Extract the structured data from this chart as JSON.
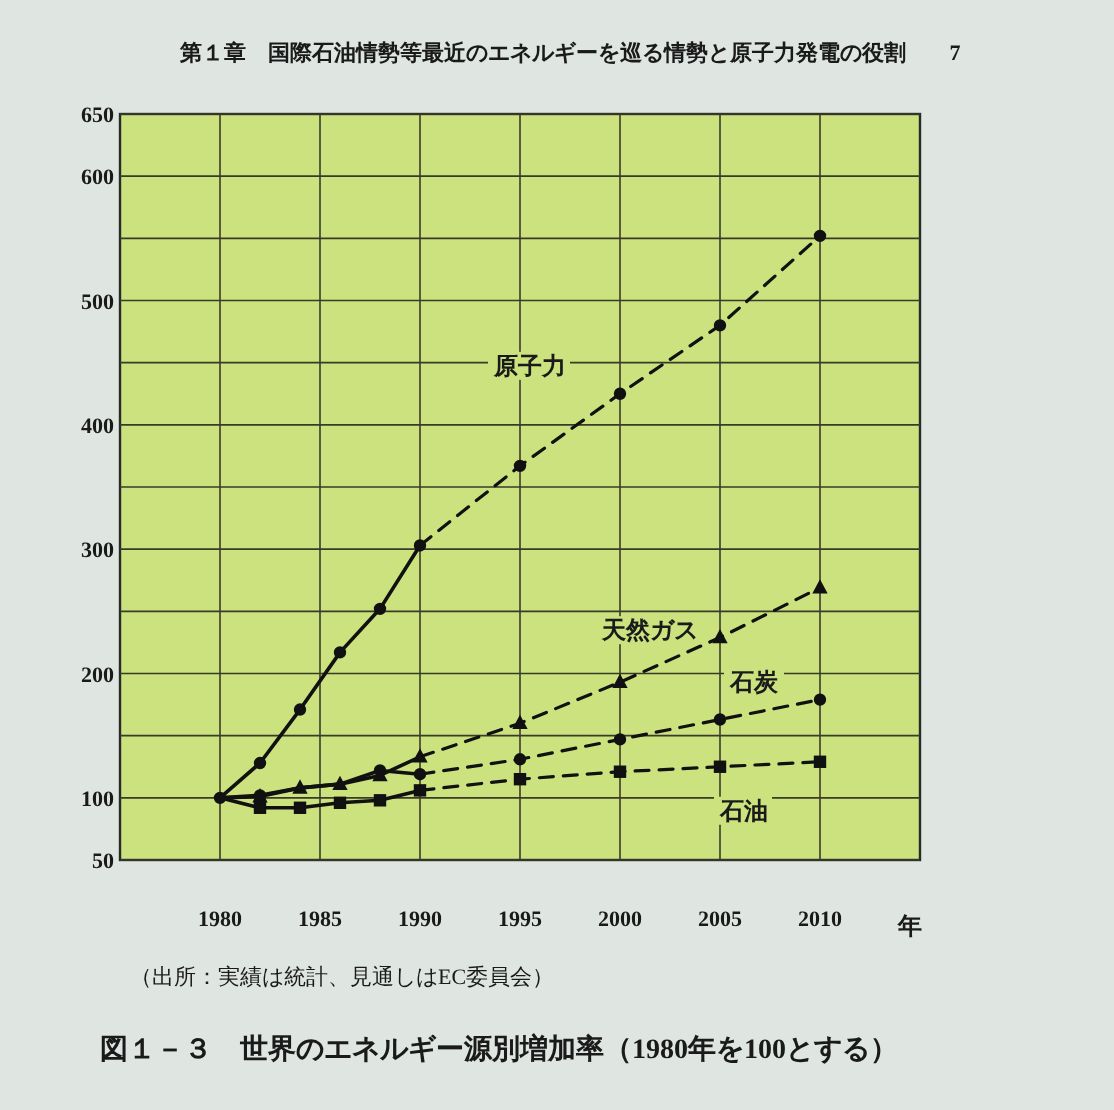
{
  "chart_data": {
    "type": "line",
    "title": "図１－３　世界のエネルギー源別増加率（1980年を100とする）",
    "xlabel": "年",
    "annotations": [
      "第１章　国際石油情勢等最近のエネルギーを巡る情勢と原子力発電の役割　　7",
      "（出所：実績は統計、見通しはEC委員会）"
    ],
    "xlim": [
      1975,
      2015
    ],
    "xticks": [
      1980,
      1985,
      1990,
      1995,
      2000,
      2005,
      2010
    ],
    "ylim": [
      50,
      650
    ],
    "yticks": [
      50,
      100,
      {
        "value": 150,
        "label": null
      },
      200,
      {
        "value": 250,
        "label": null
      },
      300,
      {
        "value": 350,
        "label": null
      },
      400,
      {
        "value": 450,
        "label": null
      },
      500,
      {
        "value": 550,
        "label": null
      },
      600,
      650
    ],
    "grid": true,
    "series": [
      {
        "color": "#111111",
        "marker": "circle",
        "line_style": "solid",
        "x": [
          1980,
          1982,
          1984,
          1986,
          1988,
          1990
        ],
        "values": [
          100,
          128,
          171,
          217,
          252,
          303
        ]
      },
      {
        "name": "原子力",
        "color": "#111111",
        "marker": "circle",
        "line_style": "dashed",
        "x": [
          1990,
          1995,
          2000,
          2005,
          2010
        ],
        "values": [
          303,
          367,
          425,
          480,
          552
        ]
      },
      {
        "color": "#111111",
        "marker": "triangle",
        "line_style": "solid",
        "x": [
          1980,
          1982,
          1984,
          1986,
          1988,
          1990
        ],
        "values": [
          100,
          101,
          108,
          111,
          118,
          133
        ]
      },
      {
        "name": "天然ガス",
        "color": "#111111",
        "marker": "triangle",
        "line_style": "dashed",
        "x": [
          1990,
          1995,
          2000,
          2005,
          2010
        ],
        "values": [
          133,
          160,
          193,
          229,
          269
        ]
      },
      {
        "color": "#111111",
        "marker": "circle",
        "line_style": "solid",
        "x": [
          1980,
          1982,
          1984,
          1986,
          1988,
          1990
        ],
        "values": [
          100,
          102,
          108,
          111,
          122,
          119
        ]
      },
      {
        "name": "石炭",
        "color": "#111111",
        "marker": "circle",
        "line_style": "dashed",
        "x": [
          1990,
          1995,
          2000,
          2005,
          2010
        ],
        "values": [
          119,
          131,
          147,
          163,
          179
        ]
      },
      {
        "color": "#111111",
        "marker": "square",
        "line_style": "solid",
        "x": [
          1980,
          1982,
          1984,
          1986,
          1988,
          1990
        ],
        "values": [
          100,
          92,
          92,
          96,
          98,
          106
        ]
      },
      {
        "name": "石油",
        "color": "#111111",
        "marker": "square",
        "line_style": "dashed",
        "x": [
          1990,
          1995,
          2000,
          2005,
          2010
        ],
        "values": [
          106,
          115,
          121,
          125,
          129
        ]
      }
    ]
  }
}
